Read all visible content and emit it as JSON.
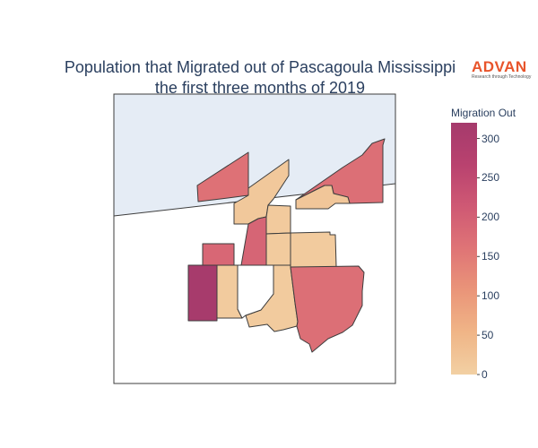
{
  "title_line1": "Population that Migrated out of Pascagoula Mississippi",
  "title_line2": "the first three months of 2019",
  "logo": {
    "name": "ADVAN",
    "tagline": "Research through Technology",
    "color": "#e8542b"
  },
  "colorbar": {
    "title": "Migration Out",
    "min": 0,
    "max": 320,
    "ticks": [
      {
        "value": 0,
        "label": "0"
      },
      {
        "value": 50,
        "label": "50"
      },
      {
        "value": 100,
        "label": "100"
      },
      {
        "value": 150,
        "label": "150"
      },
      {
        "value": 200,
        "label": "200"
      },
      {
        "value": 250,
        "label": "250"
      },
      {
        "value": 300,
        "label": "300"
      }
    ],
    "colorscale": [
      "#f2d0a3",
      "#f0b587",
      "#ea9579",
      "#df7476",
      "#cf5974",
      "#b9426f",
      "#a53a6c"
    ]
  },
  "map": {
    "water_color": "#e5ecf5",
    "land_color": "#ffffff",
    "border_color": "#3d3d3d"
  },
  "regions": [
    {
      "id": "nw-shore",
      "value": 165
    },
    {
      "id": "north-strip",
      "value": 15
    },
    {
      "id": "ne-shore",
      "value": 170
    },
    {
      "id": "ne-notch",
      "value": 20
    },
    {
      "id": "center-north",
      "value": 12
    },
    {
      "id": "center-red",
      "value": 190
    },
    {
      "id": "center-small",
      "value": 10
    },
    {
      "id": "center-east",
      "value": 10
    },
    {
      "id": "west-small",
      "value": 185
    },
    {
      "id": "west-dark",
      "value": 315
    },
    {
      "id": "west-mid",
      "value": 10
    },
    {
      "id": "center-south",
      "value": 10
    },
    {
      "id": "south-east",
      "value": 170
    }
  ]
}
